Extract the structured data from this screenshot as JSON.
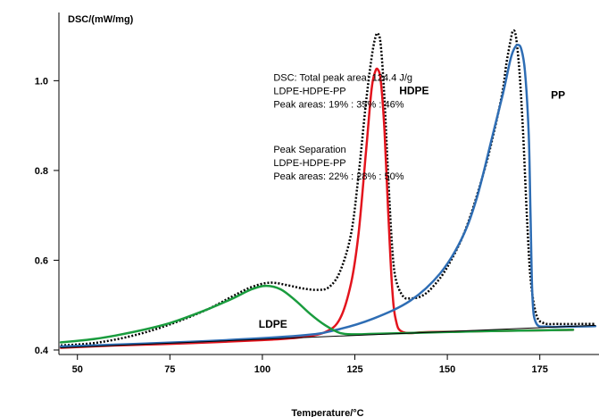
{
  "chart_data": {
    "type": "line",
    "xlabel": "Temperature/°C",
    "ylabel": "DSC/(mW/mg)",
    "xlim": [
      45,
      191
    ],
    "ylim": [
      0.39,
      1.14
    ],
    "x_ticks": [
      50,
      75,
      100,
      125,
      150,
      175
    ],
    "y_ticks": [
      0.4,
      0.6,
      0.8,
      1.0
    ],
    "x_tick_labels": [
      "50",
      "75",
      "100",
      "125",
      "150",
      "175"
    ],
    "y_tick_labels": [
      "0.4",
      "0.6",
      "0.8",
      "1.0"
    ],
    "grid": false,
    "annotations": [
      {
        "lines": [
          "DSC: Total peak area: 124.4 J/g",
          "LDPE-HDPE-PP",
          "Peak areas: 19% : 35% : 46%"
        ],
        "x": 103,
        "y": 1.0
      },
      {
        "lines": [
          "Peak Separation",
          "LDPE-HDPE-PP",
          "Peak areas: 22% : 28% : 50%"
        ],
        "x": 103,
        "y": 0.84
      }
    ],
    "labels": [
      {
        "text": "HDPE",
        "x": 137,
        "y": 0.97
      },
      {
        "text": "PP",
        "x": 178,
        "y": 0.96
      },
      {
        "text": "LDPE",
        "x": 99,
        "y": 0.45
      }
    ],
    "series": [
      {
        "color": "#000000",
        "style": "dotted",
        "width": 2.5,
        "x": [
          45.5,
          55,
          65,
          75,
          85,
          92,
          97,
          102,
          107,
          111,
          115,
          118,
          121,
          124,
          126,
          128,
          129.5,
          130.5,
          131.2,
          132,
          133,
          134,
          135,
          136,
          138,
          140,
          143,
          146,
          150,
          155,
          160,
          163,
          165,
          166,
          167,
          167.7,
          168.5,
          169.5,
          170.5,
          171.5,
          172.5,
          174,
          176,
          180,
          186,
          190
        ],
        "y": [
          0.41,
          0.416,
          0.432,
          0.457,
          0.49,
          0.52,
          0.54,
          0.55,
          0.544,
          0.537,
          0.534,
          0.54,
          0.575,
          0.66,
          0.79,
          0.95,
          1.05,
          1.095,
          1.105,
          1.08,
          0.96,
          0.79,
          0.64,
          0.56,
          0.52,
          0.515,
          0.52,
          0.54,
          0.585,
          0.67,
          0.8,
          0.9,
          0.98,
          1.04,
          1.085,
          1.11,
          1.1,
          1.02,
          0.88,
          0.7,
          0.56,
          0.48,
          0.46,
          0.458,
          0.458,
          0.458
        ]
      },
      {
        "color": "#e3141d",
        "style": "solid",
        "width": 2.5,
        "x": [
          45.5,
          60,
          80,
          100,
          110,
          117,
          121,
          124,
          126,
          128,
          129.5,
          130.5,
          131.2,
          132,
          133,
          134,
          135,
          136,
          138,
          145,
          160,
          184
        ],
        "y": [
          0.405,
          0.41,
          0.415,
          0.422,
          0.428,
          0.44,
          0.47,
          0.55,
          0.66,
          0.84,
          0.98,
          1.02,
          1.025,
          1.0,
          0.89,
          0.71,
          0.55,
          0.47,
          0.44,
          0.44,
          0.442,
          0.445
        ]
      },
      {
        "color": "#2e6db4",
        "style": "solid",
        "width": 2.5,
        "x": [
          45.5,
          80,
          110,
          120,
          130,
          140,
          148,
          154,
          158,
          162,
          165,
          167,
          168,
          169,
          170,
          171,
          172,
          172.5,
          173,
          174,
          177,
          182,
          190
        ],
        "y": [
          0.408,
          0.418,
          0.432,
          0.445,
          0.47,
          0.51,
          0.57,
          0.65,
          0.74,
          0.87,
          0.97,
          1.045,
          1.07,
          1.08,
          1.07,
          1.02,
          0.88,
          0.7,
          0.52,
          0.46,
          0.452,
          0.452,
          0.453
        ]
      },
      {
        "color": "#1a9c3e",
        "style": "solid",
        "width": 2.5,
        "x": [
          45.5,
          55,
          65,
          75,
          85,
          92,
          97,
          101,
          105,
          109,
          113,
          117,
          121,
          125,
          130,
          140,
          160,
          184
        ],
        "y": [
          0.417,
          0.425,
          0.44,
          0.46,
          0.49,
          0.515,
          0.535,
          0.543,
          0.535,
          0.51,
          0.48,
          0.455,
          0.438,
          0.435,
          0.436,
          0.438,
          0.442,
          0.445
        ]
      },
      {
        "color": "#000000",
        "style": "solid",
        "width": 1,
        "x": [
          45.5,
          190
        ],
        "y": [
          0.405,
          0.455
        ]
      }
    ]
  }
}
